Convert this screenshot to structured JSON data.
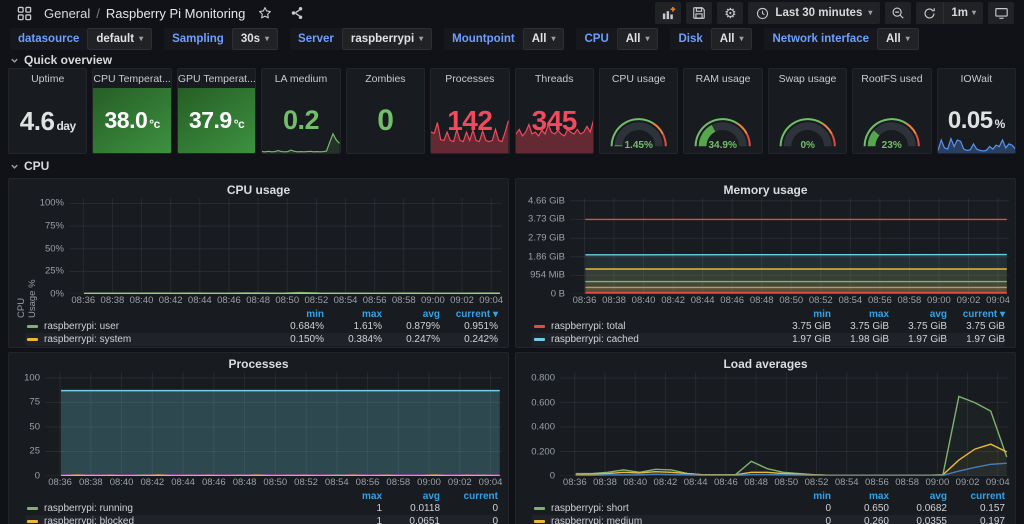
{
  "nav": {
    "folder": "General",
    "separator": "/",
    "title": "Raspberry Pi Monitoring",
    "time_range": "Last 30 minutes",
    "refresh_interval": "1m"
  },
  "icons": {
    "apps-icon": "grid-of-squares",
    "star-icon": "star outline",
    "share-icon": "share-alt nodes",
    "panel-add-icon": "bar chart with orange plus",
    "save-icon": "floppy disk",
    "settings-icon": "gear ⚙",
    "clock-icon": "clock",
    "zoom-out-icon": "magnifier with minus",
    "refresh-icon": "circular arrows",
    "caret-down-icon": "▾",
    "tv-icon": "monitor",
    "chevron-down-icon": "v"
  },
  "variables": [
    {
      "label": "datasource",
      "value": "default"
    },
    {
      "label": "Sampling",
      "value": "30s"
    },
    {
      "label": "Server",
      "value": "raspberrypi"
    },
    {
      "label": "Mountpoint",
      "value": "All"
    },
    {
      "label": "CPU",
      "value": "All"
    },
    {
      "label": "Disk",
      "value": "All"
    },
    {
      "label": "Network interface",
      "value": "All"
    }
  ],
  "sections": {
    "overview": "Quick overview",
    "cpu": "CPU"
  },
  "colors": {
    "page_bg": "#111217",
    "panel_bg": "#181b1f",
    "green": "#73BF69",
    "red": "#F2495C",
    "blue": "#5794F2",
    "yellow": "#EAB839",
    "cyan": "#6ED0E0",
    "orange": "#EF843C",
    "series_red": "#E24D42",
    "magenta": "#BA43A9",
    "link_blue": "#33a2e5",
    "label_blue": "#6e9fff"
  },
  "gauge": {
    "thresholds": [
      [
        "#73BF69",
        0,
        0.68
      ],
      [
        "#EF843C",
        0.68,
        0.85
      ],
      [
        "#E24D42",
        0.85,
        1
      ]
    ],
    "ring_color": "#2e323a",
    "fill_color": "#56A64B",
    "text_color": "#73BF69"
  },
  "stats": [
    {
      "title": "Uptime",
      "type": "number",
      "value": "4.6",
      "unit": "day",
      "color": "#e0e1e3",
      "size": 26
    },
    {
      "title": "CPU Temperat...",
      "type": "bg",
      "value": "38.0",
      "unit": "°c",
      "color": "#ffffff",
      "size": 23
    },
    {
      "title": "GPU Temperat...",
      "type": "bg",
      "value": "37.9",
      "unit": "°c",
      "color": "#ffffff",
      "size": 23
    },
    {
      "title": "LA medium",
      "type": "spark",
      "value": "0.2",
      "unit": "",
      "color": "#73BF69",
      "size": 27,
      "spark": {
        "color": "#73BF69",
        "fill": 0.15,
        "h": 24,
        "values": [
          0.06,
          0.05,
          0.07,
          0.05,
          0.06,
          0.1,
          0.06,
          0.05,
          0.06,
          0.12,
          0.07,
          0.05,
          0.06,
          0.05,
          0.06,
          0.07,
          0.05,
          0.06,
          0.05,
          0.06,
          0.08,
          0.45,
          0.8,
          0.55,
          0.4
        ]
      }
    },
    {
      "title": "Zombies",
      "type": "number",
      "value": "0",
      "unit": "",
      "color": "#73BF69",
      "size": 30
    },
    {
      "title": "Processes",
      "type": "spark",
      "value": "142",
      "unit": "",
      "color": "#F2495C",
      "size": 28,
      "spark": {
        "color": "#F2495C",
        "fill": 0.35,
        "h": 38,
        "values": [
          0.55,
          0.52,
          0.8,
          0.35,
          0.33,
          0.55,
          0.33,
          0.3,
          0.62,
          0.33,
          0.3,
          0.55,
          0.33,
          0.6,
          0.33,
          0.3,
          0.58,
          0.33,
          0.3,
          0.33,
          0.62,
          0.33,
          0.3,
          0.55,
          0.85
        ]
      }
    },
    {
      "title": "Threads",
      "type": "spark",
      "value": "345",
      "unit": "",
      "color": "#F2495C",
      "size": 28,
      "spark": {
        "color": "#F2495C",
        "fill": 0.35,
        "h": 38,
        "values": [
          0.5,
          0.62,
          0.45,
          0.55,
          0.75,
          0.5,
          0.55,
          0.45,
          0.6,
          0.5,
          0.75,
          0.55,
          0.5,
          0.6,
          0.5,
          0.45,
          0.62,
          0.55,
          0.5,
          0.62,
          0.5,
          0.55,
          0.7,
          0.55,
          0.85
        ]
      }
    },
    {
      "title": "CPU usage",
      "type": "gauge",
      "pct": 1.45,
      "display": "1.45%"
    },
    {
      "title": "RAM usage",
      "type": "gauge",
      "pct": 34.9,
      "display": "34.9%"
    },
    {
      "title": "Swap usage",
      "type": "gauge",
      "pct": 0,
      "display": "0%"
    },
    {
      "title": "RootFS used",
      "type": "gauge",
      "pct": 23,
      "display": "23%"
    },
    {
      "title": "IOWait",
      "type": "spark",
      "value": "0.05",
      "unit": "%",
      "color": "#e0e1e3",
      "size": 24,
      "spark": {
        "color": "#5794F2",
        "fill": 0.3,
        "h": 26,
        "values": [
          0.1,
          0.5,
          0.2,
          0.15,
          0.55,
          0.25,
          0.5,
          0.45,
          0.15,
          0.1,
          0.12,
          0.35,
          0.15,
          0.1,
          0.08,
          0.1,
          0.25,
          0.15,
          0.3,
          0.25,
          0.5,
          0.2,
          0.35,
          0.3,
          0.15
        ]
      }
    }
  ],
  "chart_data": {
    "x_ticks": [
      "08:36",
      "08:38",
      "08:40",
      "08:42",
      "08:44",
      "08:46",
      "08:48",
      "08:50",
      "08:52",
      "08:54",
      "08:56",
      "08:58",
      "09:00",
      "09:02",
      "09:04"
    ],
    "cpu_usage": {
      "type": "line",
      "title": "CPU usage",
      "y_axis_label": "CPU Usage %",
      "y_max": 106,
      "gutter": 54,
      "y_ticks": [
        [
          0,
          "0%"
        ],
        [
          25,
          "25%"
        ],
        [
          50,
          "50%"
        ],
        [
          75,
          "75%"
        ],
        [
          100,
          "100%"
        ]
      ],
      "series": [
        {
          "name": "raspberrypi: user",
          "color": "#7EB26D",
          "fill": 0.1,
          "values": [
            0.9,
            0.85,
            0.92,
            0.88,
            0.95,
            0.9,
            1.05,
            0.9,
            0.88,
            1.2,
            0.95,
            0.9,
            1.61,
            1.0,
            0.9,
            0.93,
            0.88,
            0.9,
            0.95,
            0.9,
            0.92,
            0.88,
            0.95,
            0.95
          ]
        },
        {
          "name": "raspberrypi: system",
          "color": "#EAB839",
          "fill": 0.08,
          "values": [
            0.22,
            0.25,
            0.2,
            0.28,
            0.24,
            0.22,
            0.3,
            0.25,
            0.22,
            0.3,
            0.25,
            0.22,
            0.38,
            0.3,
            0.25,
            0.22,
            0.26,
            0.24,
            0.22,
            0.28,
            0.25,
            0.22,
            0.26,
            0.24
          ]
        }
      ],
      "legend": {
        "headers": [
          "min",
          "max",
          "avg",
          "current"
        ],
        "sort": "current",
        "rows": [
          {
            "label": "raspberrypi: user",
            "color": "#7EB26D",
            "values": [
              "0.684%",
              "1.61%",
              "0.879%",
              "0.951%"
            ]
          },
          {
            "label": "raspberrypi: system",
            "color": "#EAB839",
            "values": [
              "0.150%",
              "0.384%",
              "0.247%",
              "0.242%"
            ]
          }
        ]
      }
    },
    "memory_usage": {
      "type": "line",
      "title": "Memory usage",
      "y_max": 4.8,
      "gutter": 48,
      "y_ticks": [
        [
          0,
          "0 B"
        ],
        [
          0.932,
          "954 MiB"
        ],
        [
          1.86,
          "1.86 GiB"
        ],
        [
          2.79,
          "2.79 GiB"
        ],
        [
          3.73,
          "3.73 GiB"
        ],
        [
          4.66,
          "4.66 GiB"
        ]
      ],
      "series": [
        {
          "name": "raspberrypi: total",
          "color": "#E24D42",
          "values": [
            3.73,
            3.73
          ]
        },
        {
          "name": "raspberrypi: cached",
          "color": "#6ED0E0",
          "fill": 0.12,
          "values": [
            1.96,
            1.97
          ]
        },
        {
          "name": "",
          "color": "#EAB839",
          "fill": 0.1,
          "values": [
            1.25,
            1.25
          ]
        },
        {
          "name": "",
          "color": "#7EB26D",
          "fill": 0.1,
          "values": [
            0.62,
            0.62
          ]
        },
        {
          "name": "",
          "color": "#EF843C",
          "fill": 0.12,
          "values": [
            0.33,
            0.33
          ]
        },
        {
          "name": "",
          "color": "#E24D42",
          "fill": 0.15,
          "values": [
            0.07,
            0.07
          ]
        }
      ],
      "legend": {
        "headers": [
          "min",
          "max",
          "avg",
          "current"
        ],
        "sort": "current",
        "rows": [
          {
            "label": "raspberrypi: total",
            "color": "#E24D42",
            "values": [
              "3.75 GiB",
              "3.75 GiB",
              "3.75 GiB",
              "3.75 GiB"
            ]
          },
          {
            "label": "raspberrypi: cached",
            "color": "#6ED0E0",
            "values": [
              "1.97 GiB",
              "1.98 GiB",
              "1.97 GiB",
              "1.97 GiB"
            ]
          }
        ]
      }
    },
    "processes": {
      "type": "line",
      "title": "Processes",
      "y_max": 106,
      "gutter": 30,
      "y_ticks": [
        [
          0,
          "0"
        ],
        [
          25,
          "25"
        ],
        [
          50,
          "50"
        ],
        [
          75,
          "75"
        ],
        [
          100,
          "100"
        ]
      ],
      "series": [
        {
          "name": "",
          "color": "#6ED0E0",
          "fill": 0.25,
          "values": [
            87,
            87
          ]
        },
        {
          "name": "",
          "color": "#BA43A9",
          "values": [
            1,
            1
          ]
        },
        {
          "name": "raspberrypi: running",
          "color": "#7EB26D",
          "values": [
            0,
            0,
            0.6,
            0,
            0,
            0.8,
            0,
            0,
            0.5,
            0,
            0,
            0.7,
            0,
            0,
            0.6,
            0,
            0,
            0.8,
            0,
            0,
            0.5,
            0,
            0,
            0.6,
            0,
            0,
            0.7,
            0
          ]
        },
        {
          "name": "raspberrypi: blocked",
          "color": "#EAB839",
          "values": [
            0,
            0.8,
            0,
            0.5,
            0,
            0,
            0.9,
            0,
            0,
            0.6,
            0,
            0,
            0.8,
            0,
            0,
            0.6,
            0,
            0,
            0.7,
            0,
            0.5,
            0,
            0,
            0.8,
            0,
            0.6,
            0,
            0
          ]
        }
      ],
      "legend": {
        "headers": [
          "max",
          "avg",
          "current"
        ],
        "rows": [
          {
            "label": "raspberrypi: running",
            "color": "#7EB26D",
            "values": [
              "1",
              "0.0118",
              "0"
            ]
          },
          {
            "label": "raspberrypi: blocked",
            "color": "#EAB839",
            "values": [
              "1",
              "0.0651",
              "0"
            ]
          }
        ]
      }
    },
    "load_averages": {
      "type": "line",
      "title": "Load averages",
      "y_max": 0.85,
      "gutter": 38,
      "y_ticks": [
        [
          0,
          "0"
        ],
        [
          0.2,
          "0.200"
        ],
        [
          0.4,
          "0.400"
        ],
        [
          0.6,
          "0.600"
        ],
        [
          0.8,
          "0.800"
        ]
      ],
      "series": [
        {
          "name": "raspberrypi: short",
          "color": "#7EB26D",
          "fill": 0.05,
          "values": [
            0.02,
            0.02,
            0.03,
            0.05,
            0.03,
            0.055,
            0.05,
            0.02,
            0.01,
            0.01,
            0.01,
            0.12,
            0.06,
            0.03,
            0.02,
            0.01,
            0.005,
            0.005,
            0.005,
            0.005,
            0.005,
            0.005,
            0.005,
            0.01,
            0.65,
            0.6,
            0.53,
            0.155
          ]
        },
        {
          "name": "raspberrypi: medium",
          "color": "#EAB839",
          "fill": 0.05,
          "values": [
            0.01,
            0.015,
            0.02,
            0.03,
            0.025,
            0.035,
            0.03,
            0.02,
            0.01,
            0.01,
            0.01,
            0.03,
            0.03,
            0.02,
            0.015,
            0.01,
            0.005,
            0.005,
            0.005,
            0.005,
            0.005,
            0.005,
            0.005,
            0.01,
            0.13,
            0.22,
            0.26,
            0.197
          ]
        },
        {
          "name": "",
          "color": "#447EBC",
          "fill": 0.05,
          "values": [
            0.005,
            0.005,
            0.01,
            0.01,
            0.01,
            0.015,
            0.012,
            0.01,
            0.005,
            0.005,
            0.005,
            0.012,
            0.012,
            0.01,
            0.008,
            0.005,
            0.004,
            0.004,
            0.004,
            0.004,
            0.004,
            0.004,
            0.004,
            0.006,
            0.04,
            0.07,
            0.095,
            0.105
          ]
        }
      ],
      "legend": {
        "headers": [
          "min",
          "max",
          "avg",
          "current"
        ],
        "rows": [
          {
            "label": "raspberrypi: short",
            "color": "#7EB26D",
            "values": [
              "0",
              "0.650",
              "0.0682",
              "0.157"
            ]
          },
          {
            "label": "raspberrypi: medium",
            "color": "#EAB839",
            "values": [
              "0",
              "0.260",
              "0.0355",
              "0.197"
            ]
          }
        ]
      }
    }
  }
}
